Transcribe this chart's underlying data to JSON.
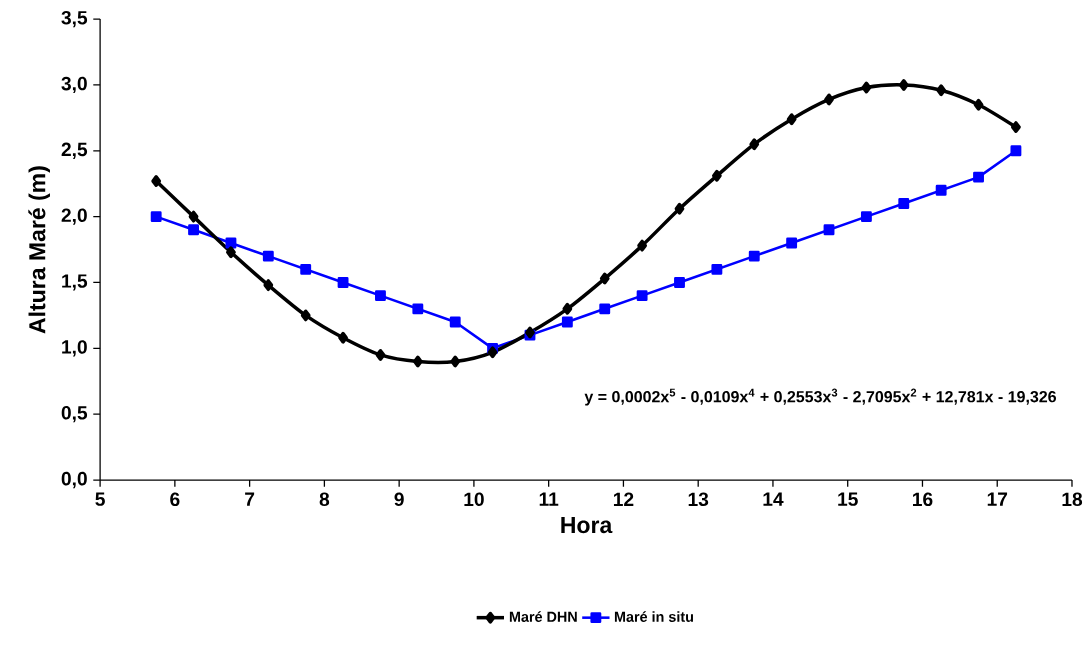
{
  "chart_data": {
    "type": "line",
    "xlabel": "Hora",
    "ylabel": "Altura Maré (m)",
    "x": [
      5.75,
      6.25,
      6.75,
      7.25,
      7.75,
      8.25,
      8.75,
      9.25,
      9.75,
      10.25,
      10.75,
      11.25,
      11.75,
      12.25,
      12.75,
      13.25,
      13.75,
      14.25,
      14.75,
      15.25,
      15.75,
      16.25,
      16.75,
      17.25
    ],
    "series": [
      {
        "name": "Maré DHN",
        "color": "#000000",
        "marker": "diamond",
        "values": [
          2.27,
          2.0,
          1.73,
          1.48,
          1.25,
          1.08,
          0.95,
          0.9,
          0.9,
          0.97,
          1.12,
          1.3,
          1.53,
          1.78,
          2.06,
          2.31,
          2.55,
          2.74,
          2.89,
          2.98,
          3.0,
          2.96,
          2.85,
          2.68
        ]
      },
      {
        "name": "Maré in situ",
        "color": "#0000ff",
        "marker": "square",
        "values": [
          2.0,
          1.9,
          1.8,
          1.7,
          1.6,
          1.5,
          1.4,
          1.3,
          1.2,
          1.0,
          1.1,
          1.2,
          1.3,
          1.4,
          1.5,
          1.6,
          1.7,
          1.8,
          1.9,
          2.0,
          2.1,
          2.2,
          2.3,
          2.5
        ]
      }
    ],
    "annotations": [
      "y = 0,0002x$^{5}$ - 0,0109x$^{4}$ + 0,2553x$^{3}$ - 2,7095x$^{2}$ + 12,781x - 19,326"
    ],
    "xlim": [
      5,
      18
    ],
    "xticks": [
      5,
      6,
      7,
      8,
      9,
      10,
      11,
      12,
      13,
      14,
      15,
      16,
      17,
      18
    ],
    "ylim": [
      0,
      3.5
    ],
    "yticks": [
      {
        "value": 0,
        "label": "0,0"
      },
      {
        "value": 0.5,
        "label": "0,5"
      },
      {
        "value": 1,
        "label": "1,0"
      },
      {
        "value": 1.5,
        "label": "1,5"
      },
      {
        "value": 2,
        "label": "2,0"
      },
      {
        "value": 2.5,
        "label": "2,5"
      },
      {
        "value": 3,
        "label": "3,0"
      },
      {
        "value": 3.5,
        "label": "3,5"
      }
    ],
    "grid": false,
    "legend": "bottom",
    "line_style": "solid"
  }
}
